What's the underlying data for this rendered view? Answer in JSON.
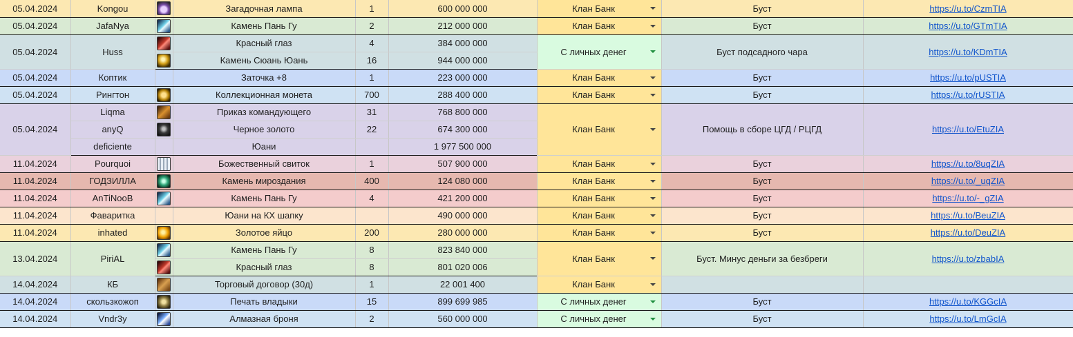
{
  "rows": [
    {
      "group": 0,
      "cells": [
        {
          "col": "date",
          "rowspan": 1,
          "text": "05.04.2024"
        },
        {
          "col": "nick",
          "rowspan": 1,
          "text": "Kongou"
        },
        {
          "col": "icon",
          "rowspan": 1,
          "icon": "potion-icon"
        },
        {
          "col": "item",
          "rowspan": 1,
          "text": "Загадочная лампа"
        },
        {
          "col": "qty",
          "rowspan": 1,
          "text": "1"
        },
        {
          "col": "amount",
          "rowspan": 1,
          "text": "600 000 000"
        },
        {
          "col": "source",
          "rowspan": 1,
          "text": "Клан Банк"
        },
        {
          "col": "purpose",
          "rowspan": 1,
          "text": "Буст"
        },
        {
          "col": "link",
          "rowspan": 1,
          "text": "https://u.to/CzmTIA"
        }
      ]
    },
    {
      "group": 1,
      "cells": [
        {
          "col": "date",
          "rowspan": 1,
          "text": "05.04.2024"
        },
        {
          "col": "nick",
          "rowspan": 1,
          "text": "JafaNya"
        },
        {
          "col": "icon",
          "rowspan": 1,
          "icon": "pangu-stone-icon"
        },
        {
          "col": "item",
          "rowspan": 1,
          "text": "Камень Пань Гу"
        },
        {
          "col": "qty",
          "rowspan": 1,
          "text": "2"
        },
        {
          "col": "amount",
          "rowspan": 1,
          "text": "212 000 000"
        },
        {
          "col": "source",
          "rowspan": 1,
          "text": "Клан Банк"
        },
        {
          "col": "purpose",
          "rowspan": 1,
          "text": "Буст"
        },
        {
          "col": "link",
          "rowspan": 1,
          "text": "https://u.to/GTmTIA"
        }
      ]
    },
    {
      "group": 2,
      "cells": [
        {
          "col": "date",
          "rowspan": 2,
          "text": "05.04.2024"
        },
        {
          "col": "nick",
          "rowspan": 2,
          "text": "Huss"
        },
        {
          "col": "icon",
          "rowspan": 1,
          "icon": "red-eye-icon"
        },
        {
          "col": "item",
          "rowspan": 1,
          "text": "Красный глаз"
        },
        {
          "col": "qty",
          "rowspan": 1,
          "text": "4"
        },
        {
          "col": "amount",
          "rowspan": 1,
          "text": "384 000 000"
        },
        {
          "col": "source",
          "rowspan": 2,
          "text": "С личных денег"
        },
        {
          "col": "purpose",
          "rowspan": 2,
          "text": "Буст подсадного чара"
        },
        {
          "col": "link",
          "rowspan": 2,
          "text": "https://u.to/KDmTIA"
        }
      ]
    },
    {
      "group": 2,
      "cells": [
        {
          "col": "icon",
          "rowspan": 1,
          "icon": "golden-orb-icon"
        },
        {
          "col": "item",
          "rowspan": 1,
          "text": "Камень Сюань Юань"
        },
        {
          "col": "qty",
          "rowspan": 1,
          "text": "16"
        },
        {
          "col": "amount",
          "rowspan": 1,
          "text": "944 000 000"
        }
      ]
    },
    {
      "group": 3,
      "cells": [
        {
          "col": "date",
          "rowspan": 1,
          "text": "05.04.2024"
        },
        {
          "col": "nick",
          "rowspan": 1,
          "text": "Коптик"
        },
        {
          "col": "icon",
          "rowspan": 1,
          "icon": ""
        },
        {
          "col": "item",
          "rowspan": 1,
          "text": "Заточка +8"
        },
        {
          "col": "qty",
          "rowspan": 1,
          "text": "1"
        },
        {
          "col": "amount",
          "rowspan": 1,
          "text": "223 000 000"
        },
        {
          "col": "source",
          "rowspan": 1,
          "text": "Клан Банк"
        },
        {
          "col": "purpose",
          "rowspan": 1,
          "text": "Буст"
        },
        {
          "col": "link",
          "rowspan": 1,
          "text": "https://u.to/pUSTIA"
        }
      ]
    },
    {
      "group": 4,
      "cells": [
        {
          "col": "date",
          "rowspan": 1,
          "text": "05.04.2024"
        },
        {
          "col": "nick",
          "rowspan": 1,
          "text": "Рингтон"
        },
        {
          "col": "icon",
          "rowspan": 1,
          "icon": "coin-icon"
        },
        {
          "col": "item",
          "rowspan": 1,
          "text": "Коллекционная монета"
        },
        {
          "col": "qty",
          "rowspan": 1,
          "text": "700"
        },
        {
          "col": "amount",
          "rowspan": 1,
          "text": "288 400 000"
        },
        {
          "col": "source",
          "rowspan": 1,
          "text": "Клан Банк"
        },
        {
          "col": "purpose",
          "rowspan": 1,
          "text": "Буст"
        },
        {
          "col": "link",
          "rowspan": 1,
          "text": "https://u.to/rUSTIA"
        }
      ]
    },
    {
      "group": 5,
      "cells": [
        {
          "col": "date",
          "rowspan": 3,
          "text": "05.04.2024"
        },
        {
          "col": "nick",
          "rowspan": 1,
          "text": "Liqma"
        },
        {
          "col": "icon",
          "rowspan": 1,
          "icon": "commander-order-icon"
        },
        {
          "col": "item",
          "rowspan": 1,
          "text": "Приказ командующего"
        },
        {
          "col": "qty",
          "rowspan": 1,
          "text": "31"
        },
        {
          "col": "amount",
          "rowspan": 1,
          "text": "768 800 000"
        },
        {
          "col": "source",
          "rowspan": 3,
          "text": "Клан Банк"
        },
        {
          "col": "purpose",
          "rowspan": 3,
          "text": "Помощь в сборе ЦГД / РЦГД"
        },
        {
          "col": "link",
          "rowspan": 3,
          "text": "https://u.to/EtuZIA"
        }
      ]
    },
    {
      "group": 5,
      "cells": [
        {
          "col": "nick",
          "rowspan": 1,
          "text": "anyQ"
        },
        {
          "col": "icon",
          "rowspan": 1,
          "icon": "black-gold-icon"
        },
        {
          "col": "item",
          "rowspan": 1,
          "text": "Черное золото"
        },
        {
          "col": "qty",
          "rowspan": 1,
          "text": "22"
        },
        {
          "col": "amount",
          "rowspan": 1,
          "text": "674 300 000"
        }
      ]
    },
    {
      "group": 5,
      "cells": [
        {
          "col": "nick",
          "rowspan": 1,
          "text": "deficiente"
        },
        {
          "col": "icon",
          "rowspan": 1,
          "icon": ""
        },
        {
          "col": "item",
          "rowspan": 1,
          "text": "Юани"
        },
        {
          "col": "qty",
          "rowspan": 1,
          "text": ""
        },
        {
          "col": "amount",
          "rowspan": 1,
          "text": "1 977 500 000"
        }
      ]
    },
    {
      "group": 6,
      "cells": [
        {
          "col": "date",
          "rowspan": 1,
          "text": "11.04.2024"
        },
        {
          "col": "nick",
          "rowspan": 1,
          "text": "Pourquoi"
        },
        {
          "col": "icon",
          "rowspan": 1,
          "icon": "scroll-icon"
        },
        {
          "col": "item",
          "rowspan": 1,
          "text": "Божественный свиток"
        },
        {
          "col": "qty",
          "rowspan": 1,
          "text": "1"
        },
        {
          "col": "amount",
          "rowspan": 1,
          "text": "507 900 000"
        },
        {
          "col": "source",
          "rowspan": 1,
          "text": "Клан Банк"
        },
        {
          "col": "purpose",
          "rowspan": 1,
          "text": "Буст"
        },
        {
          "col": "link",
          "rowspan": 1,
          "text": "https://u.to/8uqZIA"
        }
      ]
    },
    {
      "group": 7,
      "cells": [
        {
          "col": "date",
          "rowspan": 1,
          "text": "11.04.2024"
        },
        {
          "col": "nick",
          "rowspan": 1,
          "text": "ГОДЗИЛЛА"
        },
        {
          "col": "icon",
          "rowspan": 1,
          "icon": "creation-stone-icon"
        },
        {
          "col": "item",
          "rowspan": 1,
          "text": "Камень мироздания"
        },
        {
          "col": "qty",
          "rowspan": 1,
          "text": "400"
        },
        {
          "col": "amount",
          "rowspan": 1,
          "text": "124 080 000"
        },
        {
          "col": "source",
          "rowspan": 1,
          "text": "Клан Банк"
        },
        {
          "col": "purpose",
          "rowspan": 1,
          "text": "Буст"
        },
        {
          "col": "link",
          "rowspan": 1,
          "text": "https://u.to/_uqZIA"
        }
      ]
    },
    {
      "group": 8,
      "cells": [
        {
          "col": "date",
          "rowspan": 1,
          "text": "11.04.2024"
        },
        {
          "col": "nick",
          "rowspan": 1,
          "text": "AnTiNooB"
        },
        {
          "col": "icon",
          "rowspan": 1,
          "icon": "pangu-stone-icon"
        },
        {
          "col": "item",
          "rowspan": 1,
          "text": "Камень Пань Гу"
        },
        {
          "col": "qty",
          "rowspan": 1,
          "text": "4"
        },
        {
          "col": "amount",
          "rowspan": 1,
          "text": "421 200 000"
        },
        {
          "col": "source",
          "rowspan": 1,
          "text": "Клан Банк"
        },
        {
          "col": "purpose",
          "rowspan": 1,
          "text": "Буст"
        },
        {
          "col": "link",
          "rowspan": 1,
          "text": "https://u.to/-_gZIA"
        }
      ]
    },
    {
      "group": 9,
      "cells": [
        {
          "col": "date",
          "rowspan": 1,
          "text": "11.04.2024"
        },
        {
          "col": "nick",
          "rowspan": 1,
          "text": "Фаваритка"
        },
        {
          "col": "icon",
          "rowspan": 1,
          "icon": ""
        },
        {
          "col": "item",
          "rowspan": 1,
          "text": "Юани на КХ шапку"
        },
        {
          "col": "qty",
          "rowspan": 1,
          "text": ""
        },
        {
          "col": "amount",
          "rowspan": 1,
          "text": "490 000 000"
        },
        {
          "col": "source",
          "rowspan": 1,
          "text": "Клан Банк"
        },
        {
          "col": "purpose",
          "rowspan": 1,
          "text": "Буст"
        },
        {
          "col": "link",
          "rowspan": 1,
          "text": "https://u.to/BeuZIA"
        }
      ]
    },
    {
      "group": 10,
      "cells": [
        {
          "col": "date",
          "rowspan": 1,
          "text": "11.04.2024"
        },
        {
          "col": "nick",
          "rowspan": 1,
          "text": "inhated"
        },
        {
          "col": "icon",
          "rowspan": 1,
          "icon": "golden-egg-icon"
        },
        {
          "col": "item",
          "rowspan": 1,
          "text": "Золотое яйцо"
        },
        {
          "col": "qty",
          "rowspan": 1,
          "text": "200"
        },
        {
          "col": "amount",
          "rowspan": 1,
          "text": "280 000 000"
        },
        {
          "col": "source",
          "rowspan": 1,
          "text": "Клан Банк"
        },
        {
          "col": "purpose",
          "rowspan": 1,
          "text": "Буст"
        },
        {
          "col": "link",
          "rowspan": 1,
          "text": "https://u.to/DeuZIA"
        }
      ]
    },
    {
      "group": 11,
      "cells": [
        {
          "col": "date",
          "rowspan": 2,
          "text": "13.04.2024"
        },
        {
          "col": "nick",
          "rowspan": 2,
          "text": "PiriAL"
        },
        {
          "col": "icon",
          "rowspan": 1,
          "icon": "pangu-stone-icon"
        },
        {
          "col": "item",
          "rowspan": 1,
          "text": "Камень Пань Гу"
        },
        {
          "col": "qty",
          "rowspan": 1,
          "text": "8"
        },
        {
          "col": "amount",
          "rowspan": 1,
          "text": "823 840 000"
        },
        {
          "col": "source",
          "rowspan": 2,
          "text": "Клан Банк"
        },
        {
          "col": "purpose",
          "rowspan": 2,
          "text": "Буст. Минус деньги за безбреги"
        },
        {
          "col": "link",
          "rowspan": 2,
          "text": "https://u.to/zbabIA"
        }
      ]
    },
    {
      "group": 11,
      "cells": [
        {
          "col": "icon",
          "rowspan": 1,
          "icon": "red-eye-icon"
        },
        {
          "col": "item",
          "rowspan": 1,
          "text": "Красный глаз"
        },
        {
          "col": "qty",
          "rowspan": 1,
          "text": "8"
        },
        {
          "col": "amount",
          "rowspan": 1,
          "text": "801 020 006"
        }
      ]
    },
    {
      "group": 12,
      "cells": [
        {
          "col": "date",
          "rowspan": 1,
          "text": "14.04.2024"
        },
        {
          "col": "nick",
          "rowspan": 1,
          "text": "КБ"
        },
        {
          "col": "icon",
          "rowspan": 1,
          "icon": "contract-scroll-icon"
        },
        {
          "col": "item",
          "rowspan": 1,
          "text": "Торговый договор (30д)"
        },
        {
          "col": "qty",
          "rowspan": 1,
          "text": "1"
        },
        {
          "col": "amount",
          "rowspan": 1,
          "text": "22 001 400"
        },
        {
          "col": "source",
          "rowspan": 1,
          "text": "Клан Банк"
        },
        {
          "col": "purpose",
          "rowspan": 1,
          "text": ""
        },
        {
          "col": "link",
          "rowspan": 1,
          "text": ""
        }
      ]
    },
    {
      "group": 13,
      "cells": [
        {
          "col": "date",
          "rowspan": 1,
          "text": "14.04.2024"
        },
        {
          "col": "nick",
          "rowspan": 1,
          "text": "скользкожоп"
        },
        {
          "col": "icon",
          "rowspan": 1,
          "icon": "lord-seal-icon"
        },
        {
          "col": "item",
          "rowspan": 1,
          "text": "Печать владыки"
        },
        {
          "col": "qty",
          "rowspan": 1,
          "text": "15"
        },
        {
          "col": "amount",
          "rowspan": 1,
          "text": "899 699 985"
        },
        {
          "col": "source",
          "rowspan": 1,
          "text": "С личных денег"
        },
        {
          "col": "purpose",
          "rowspan": 1,
          "text": "Буст"
        },
        {
          "col": "link",
          "rowspan": 1,
          "text": "https://u.to/KGGcIA"
        }
      ]
    },
    {
      "group": 14,
      "cells": [
        {
          "col": "date",
          "rowspan": 1,
          "text": "14.04.2024"
        },
        {
          "col": "nick",
          "rowspan": 1,
          "text": "Vndr3y"
        },
        {
          "col": "icon",
          "rowspan": 1,
          "icon": "diamond-armor-icon"
        },
        {
          "col": "item",
          "rowspan": 1,
          "text": "Алмазная броня"
        },
        {
          "col": "qty",
          "rowspan": 1,
          "text": "2"
        },
        {
          "col": "amount",
          "rowspan": 1,
          "text": "560 000 000"
        },
        {
          "col": "source",
          "rowspan": 1,
          "text": "С личных денег"
        },
        {
          "col": "purpose",
          "rowspan": 1,
          "text": "Буст"
        },
        {
          "col": "link",
          "rowspan": 1,
          "text": "https://u.to/LmGcIA"
        }
      ]
    }
  ],
  "colors": {
    "group_bg": [
      "#fce8b2",
      "#d9ead3",
      "#d0e0e3",
      "#c9daf8",
      "#cfe2f3",
      "#d9d2e9",
      "#ead1dc",
      "#e6b8af",
      "#f4cccc",
      "#fce5cd",
      "#fce8b2",
      "#d9ead3",
      "#d0e0e3",
      "#c9daf8",
      "#cfe2f3"
    ],
    "source_bank_bg": "#ffe599",
    "source_personal_bg": "#d9fbe0",
    "link": "#1155cc"
  },
  "icons": {
    "potion-icon": "radial-gradient(circle at 50% 60%, #e8d0ff 0 30%, #7a4ea8 50%, #222 90%)",
    "pangu-stone-icon": "linear-gradient(135deg, #1b3a5a 10%, #6fd0e8 45%, #e8fbff 55%, #2a5a8a 90%)",
    "red-eye-icon": "linear-gradient(135deg, #3a0a0a 10%, #c0392b 45%, #ff8a7a 55%, #5a1010 90%)",
    "golden-orb-icon": "radial-gradient(circle at 45% 40%, #fff3b0 0 15%, #d4a017 45%, #3a2a00 80%)",
    "coin-icon": "radial-gradient(circle at 50% 50%, #ffe08a 0 25%, #b8860b 55%, #2e1f00 85%)",
    "commander-order-icon": "linear-gradient(135deg, #4a2a10 10%, #d9902e 50%, #6a3a10 90%)",
    "black-gold-icon": "radial-gradient(circle at 50% 45%, #c0c0c0 0 15%, #3a3a3a 45%, #111 85%)",
    "scroll-icon": "repeating-linear-gradient(90deg, #e8eef5 0 3px, #9aa8b8 3px 5px)",
    "creation-stone-icon": "radial-gradient(circle at 50% 50%, #c8ffe8 0 15%, #2fa77a 45%, #0a2a1a 85%)",
    "golden-egg-icon": "radial-gradient(ellipse at 45% 45%, #fff0a0 0 15%, #f0a000 50%, #5a3000 85%)",
    "contract-scroll-icon": "linear-gradient(135deg, #6a3a10 10%, #d9a050 50%, #7a4a18 90%)",
    "lord-seal-icon": "radial-gradient(circle at 50% 50%, #f0e0a0 0 20%, #8a7a40 50%, #2a2410 85%)",
    "diamond-armor-icon": "linear-gradient(135deg, #10204a 10%, #7ab0ff 45%, #ffffff 55%, #2a4a9a 90%)"
  }
}
